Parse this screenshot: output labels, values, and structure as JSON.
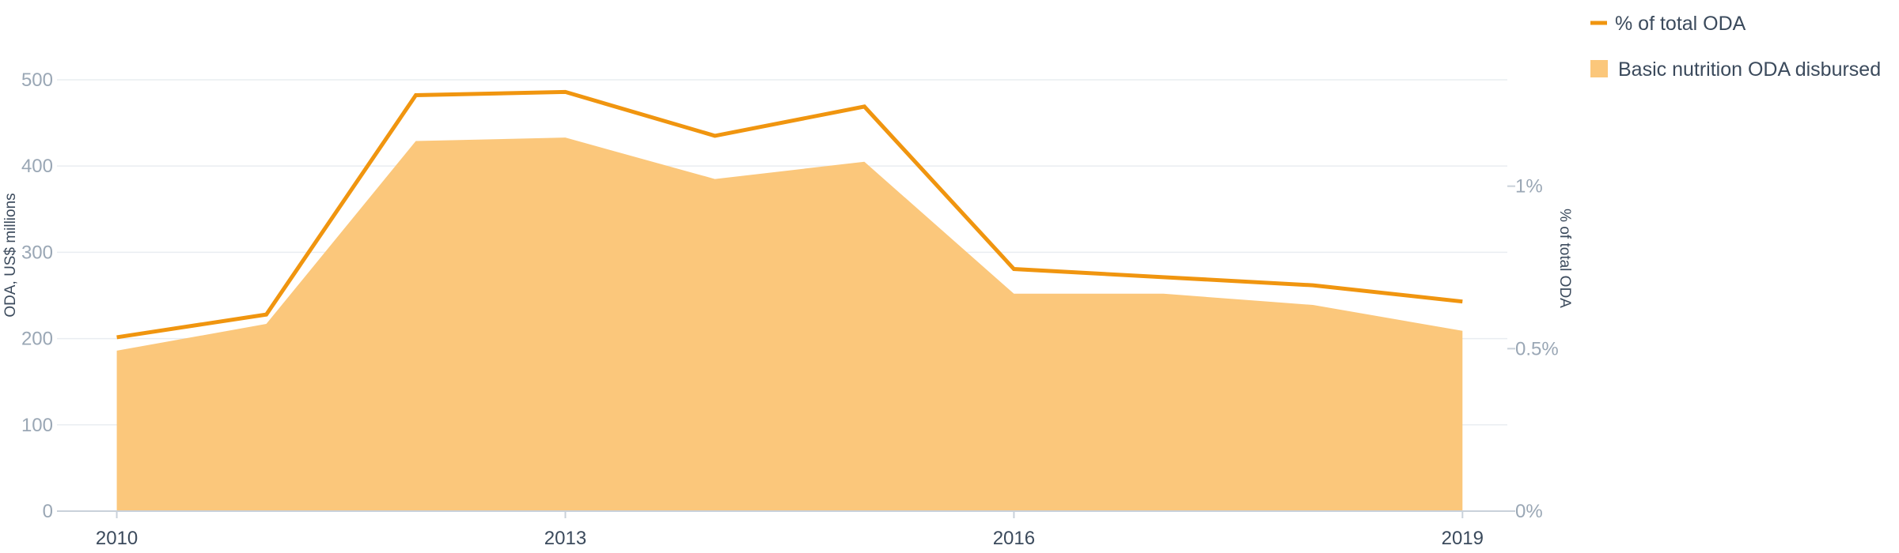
{
  "chart_data": {
    "type": "area",
    "x": [
      2010,
      2011,
      2012,
      2013,
      2014,
      2015,
      2016,
      2017,
      2018,
      2019
    ],
    "x_ticks": [
      "2010",
      "2013",
      "2016",
      "2019"
    ],
    "xlim": [
      2009.6,
      2019.3
    ],
    "y_left": {
      "label": "ODA, US$ millions",
      "ticks": [
        "0",
        "100",
        "200",
        "300",
        "400",
        "500"
      ],
      "ylim": [
        0,
        565
      ]
    },
    "y_right": {
      "label": "% of total ODA",
      "ticks": [
        "0%",
        "0.5%",
        "1%"
      ],
      "ylim": [
        0,
        1.5
      ]
    },
    "series": [
      {
        "name": "Basic nutrition ODA disbursed",
        "type": "area",
        "axis": "left",
        "color": "#fbc77b",
        "values": [
          186,
          217,
          429,
          433,
          385,
          405,
          252,
          252,
          239,
          209
        ]
      },
      {
        "name": "% of total ODA",
        "type": "line",
        "axis": "right",
        "color": "#f0950f",
        "values": [
          0.535,
          0.605,
          1.28,
          1.29,
          1.155,
          1.245,
          0.745,
          0.72,
          0.695,
          0.645
        ]
      }
    ],
    "grid": true,
    "legend": "top-right"
  }
}
